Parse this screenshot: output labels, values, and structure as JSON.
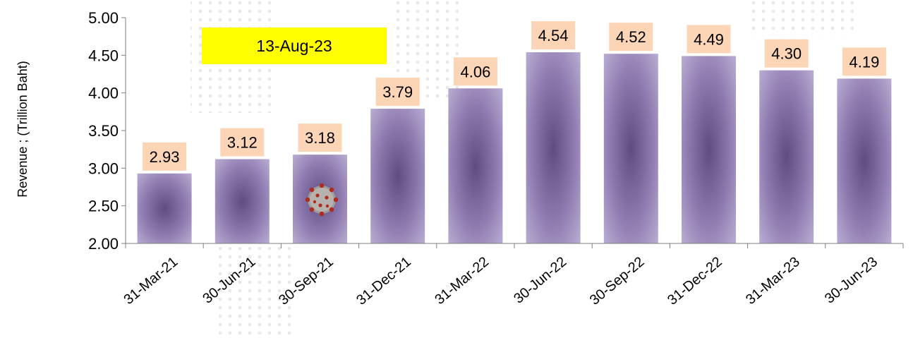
{
  "chart_data": {
    "type": "bar",
    "categories": [
      "31-Mar-21",
      "30-Jun-21",
      "30-Sep-21",
      "31-Dec-21",
      "31-Mar-22",
      "30-Jun-22",
      "30-Sep-22",
      "31-Dec-22",
      "31-Mar-23",
      "30-Jun-23"
    ],
    "values": [
      2.93,
      3.12,
      3.18,
      3.79,
      4.06,
      4.54,
      4.52,
      4.49,
      4.3,
      4.19
    ],
    "data_labels": [
      "2.93",
      "3.12",
      "3.18",
      "3.79",
      "4.06",
      "4.54",
      "4.52",
      "4.49",
      "4.30",
      "4.19"
    ],
    "ylabel": "Revenue ;  (Trillion Baht)",
    "ylim": [
      2.0,
      5.0
    ],
    "yticks": [
      "2.00",
      "2.50",
      "3.00",
      "3.50",
      "4.00",
      "4.50",
      "5.00"
    ],
    "annotation": "13-Aug-23",
    "grid": false,
    "legend": "none",
    "colors": {
      "bar_center": "#6b5a8a",
      "bar_edge": "#b3a5cc",
      "label_box": "#fbd5b5",
      "annotation_box": "#ffff00",
      "axis": "#7f7f7f"
    },
    "icons": [
      "virus-icon"
    ]
  }
}
